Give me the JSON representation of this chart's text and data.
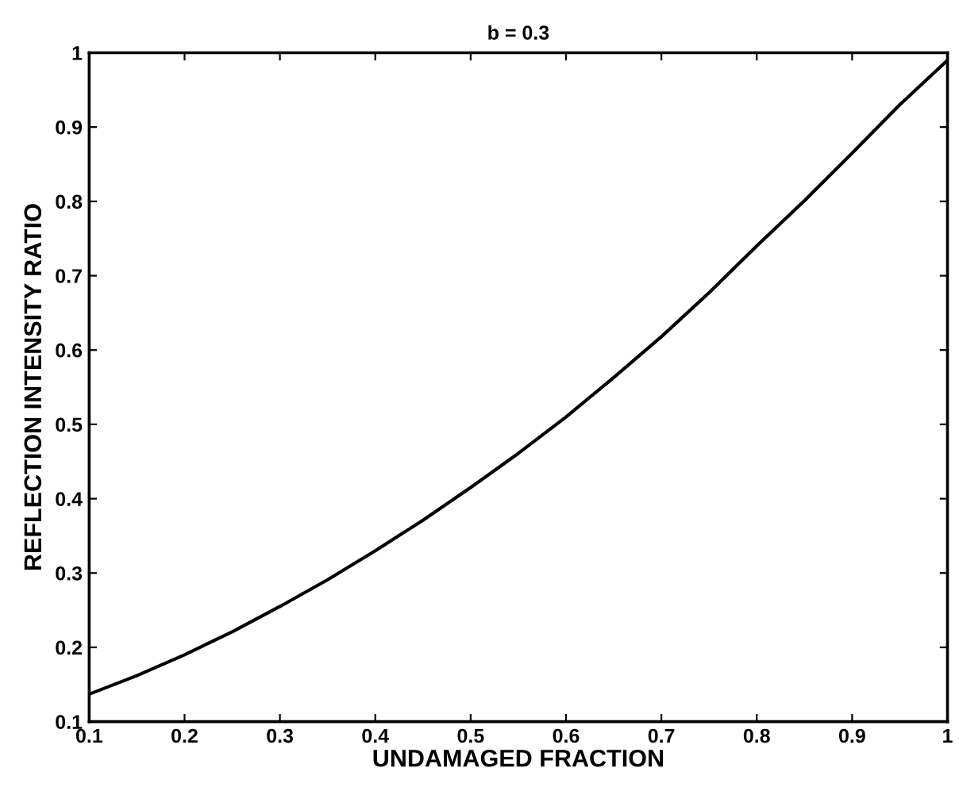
{
  "chart_data": {
    "type": "line",
    "title": "b = 0.3",
    "xlabel": "UNDAMAGED FRACTION",
    "ylabel": "REFLECTION INTENSITY RATIO",
    "x": [
      0.1,
      0.15,
      0.2,
      0.25,
      0.3,
      0.35,
      0.4,
      0.45,
      0.5,
      0.55,
      0.6,
      0.65,
      0.7,
      0.75,
      0.8,
      0.85,
      0.9,
      0.95,
      1.0
    ],
    "series": [
      {
        "color": "#000000",
        "values": [
          0.137,
          0.162,
          0.19,
          0.221,
          0.255,
          0.291,
          0.33,
          0.371,
          0.415,
          0.461,
          0.51,
          0.563,
          0.618,
          0.677,
          0.74,
          0.801,
          0.865,
          0.93,
          0.99
        ]
      }
    ],
    "xlim": [
      0.1,
      1
    ],
    "ylim": [
      0.1,
      1
    ],
    "xticks": [
      0.1,
      0.2,
      0.3,
      0.4,
      0.5,
      0.6,
      0.7,
      0.8,
      0.9,
      1
    ],
    "yticks": [
      0.1,
      0.2,
      0.3,
      0.4,
      0.5,
      0.6,
      0.7,
      0.8,
      0.9,
      1
    ],
    "grid": false,
    "legend": false,
    "marker": "none",
    "line_style": "solid"
  }
}
